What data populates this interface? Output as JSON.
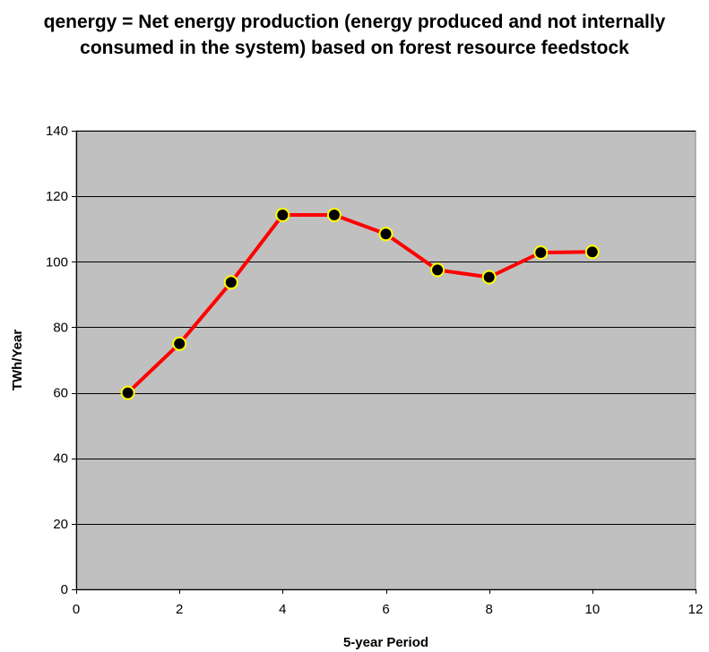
{
  "chart_data": {
    "type": "line",
    "title": "qenergy = Net energy production (energy produced and not internally consumed in the system) based on forest resource feedstock",
    "xlabel": "5-year Period",
    "ylabel": "TWh/Year",
    "xlim": [
      0,
      12
    ],
    "ylim": [
      0,
      140
    ],
    "xticks": [
      0,
      2,
      4,
      6,
      8,
      10,
      12
    ],
    "yticks": [
      0,
      20,
      40,
      60,
      80,
      100,
      120,
      140
    ],
    "grid": true,
    "series": [
      {
        "x": [
          1,
          2,
          3,
          4,
          5,
          6,
          7,
          8,
          9,
          10
        ],
        "y": [
          60,
          75,
          93.7,
          114.3,
          114.3,
          108.5,
          97.5,
          95.3,
          102.8,
          103
        ],
        "line_color": "#ff0000",
        "marker_fill": "#000000",
        "marker_edge": "#ffff00"
      }
    ],
    "plot_background": "#c0c0c0",
    "gridline_color": "#000000"
  }
}
